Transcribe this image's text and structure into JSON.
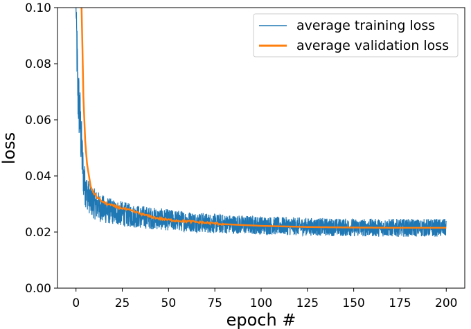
{
  "chart_data": {
    "type": "line",
    "title": "",
    "xlabel": "epoch #",
    "ylabel": "loss",
    "xlim": [
      -10,
      210
    ],
    "ylim": [
      0.0,
      0.1
    ],
    "xticks": [
      0,
      25,
      50,
      75,
      100,
      125,
      150,
      175,
      200
    ],
    "yticks": [
      0.0,
      0.02,
      0.04,
      0.06,
      0.08,
      0.1
    ],
    "xtick_labels": [
      "0",
      "25",
      "50",
      "75",
      "100",
      "125",
      "150",
      "175",
      "200"
    ],
    "ytick_labels": [
      "0.00",
      "0.02",
      "0.04",
      "0.06",
      "0.08",
      "0.10"
    ],
    "grid": false,
    "legend_position": "top-right",
    "series": [
      {
        "name": "average training loss",
        "color": "#1f77b4",
        "style": "noisy band",
        "x": [
          0,
          0.5,
          1,
          2,
          3,
          4,
          5,
          6,
          8,
          10,
          15,
          20,
          25,
          30,
          40,
          50,
          60,
          75,
          100,
          125,
          150,
          175,
          200
        ],
        "y": [
          0.1,
          0.085,
          0.07,
          0.062,
          0.05,
          0.04,
          0.036,
          0.034,
          0.031,
          0.03,
          0.028,
          0.0272,
          0.0265,
          0.0258,
          0.025,
          0.0243,
          0.0238,
          0.023,
          0.0224,
          0.0219,
          0.0216,
          0.0215,
          0.0215
        ],
        "noise_amplitude": [
          0.0,
          0.012,
          0.012,
          0.012,
          0.01,
          0.008,
          0.007,
          0.006,
          0.0055,
          0.0055,
          0.005,
          0.0045,
          0.0045,
          0.0042,
          0.004,
          0.0038,
          0.0037,
          0.0035,
          0.0033,
          0.0032,
          0.0032,
          0.0032,
          0.0032
        ]
      },
      {
        "name": "average validation loss",
        "color": "#ff7f0e",
        "style": "line",
        "x": [
          3,
          3.5,
          4,
          5,
          6,
          7,
          8,
          10,
          12,
          15,
          20,
          25,
          30,
          35,
          40,
          45,
          50,
          60,
          70,
          80,
          100,
          125,
          150,
          175,
          200
        ],
        "y": [
          0.1,
          0.085,
          0.068,
          0.052,
          0.044,
          0.04,
          0.036,
          0.0335,
          0.032,
          0.0305,
          0.0293,
          0.0285,
          0.0275,
          0.0265,
          0.0255,
          0.0248,
          0.0243,
          0.0238,
          0.0233,
          0.0228,
          0.0222,
          0.0218,
          0.0216,
          0.0215,
          0.0215
        ]
      }
    ]
  }
}
